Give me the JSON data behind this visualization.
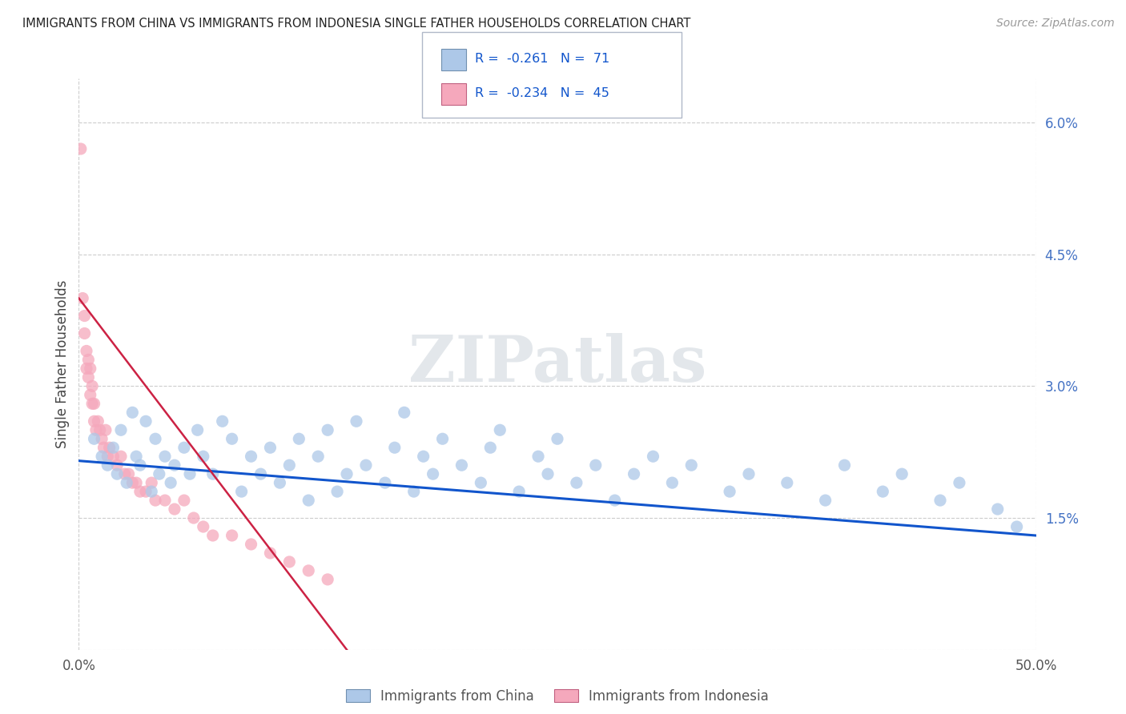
{
  "title": "IMMIGRANTS FROM CHINA VS IMMIGRANTS FROM INDONESIA SINGLE FATHER HOUSEHOLDS CORRELATION CHART",
  "source": "Source: ZipAtlas.com",
  "ylabel": "Single Father Households",
  "xlim": [
    0.0,
    0.5
  ],
  "ylim": [
    0.0,
    0.065
  ],
  "xtick_vals": [
    0.0,
    0.5
  ],
  "xtick_labels": [
    "0.0%",
    "50.0%"
  ],
  "ytick_vals": [
    0.0,
    0.015,
    0.03,
    0.045,
    0.06
  ],
  "ytick_labels": [
    "",
    "1.5%",
    "3.0%",
    "4.5%",
    "6.0%"
  ],
  "legend1_label": "Immigrants from China",
  "legend2_label": "Immigrants from Indonesia",
  "r_china": -0.261,
  "n_china": 71,
  "r_indonesia": -0.234,
  "n_indonesia": 45,
  "color_china": "#adc8e8",
  "color_indonesia": "#f5a8bc",
  "line_china": "#1155cc",
  "line_indonesia": "#cc2244",
  "background_color": "#ffffff",
  "grid_color": "#cccccc",
  "watermark": "ZIPatlas",
  "china_x": [
    0.008,
    0.012,
    0.015,
    0.018,
    0.02,
    0.022,
    0.025,
    0.028,
    0.03,
    0.032,
    0.035,
    0.038,
    0.04,
    0.042,
    0.045,
    0.048,
    0.05,
    0.055,
    0.058,
    0.062,
    0.065,
    0.07,
    0.075,
    0.08,
    0.085,
    0.09,
    0.095,
    0.1,
    0.105,
    0.11,
    0.115,
    0.12,
    0.125,
    0.13,
    0.135,
    0.14,
    0.145,
    0.15,
    0.16,
    0.165,
    0.17,
    0.175,
    0.18,
    0.185,
    0.19,
    0.2,
    0.21,
    0.215,
    0.22,
    0.23,
    0.24,
    0.245,
    0.25,
    0.26,
    0.27,
    0.28,
    0.29,
    0.3,
    0.31,
    0.32,
    0.34,
    0.35,
    0.37,
    0.39,
    0.4,
    0.42,
    0.43,
    0.45,
    0.46,
    0.48,
    0.49
  ],
  "china_y": [
    0.024,
    0.022,
    0.021,
    0.023,
    0.02,
    0.025,
    0.019,
    0.027,
    0.022,
    0.021,
    0.026,
    0.018,
    0.024,
    0.02,
    0.022,
    0.019,
    0.021,
    0.023,
    0.02,
    0.025,
    0.022,
    0.02,
    0.026,
    0.024,
    0.018,
    0.022,
    0.02,
    0.023,
    0.019,
    0.021,
    0.024,
    0.017,
    0.022,
    0.025,
    0.018,
    0.02,
    0.026,
    0.021,
    0.019,
    0.023,
    0.027,
    0.018,
    0.022,
    0.02,
    0.024,
    0.021,
    0.019,
    0.023,
    0.025,
    0.018,
    0.022,
    0.02,
    0.024,
    0.019,
    0.021,
    0.017,
    0.02,
    0.022,
    0.019,
    0.021,
    0.018,
    0.02,
    0.019,
    0.017,
    0.021,
    0.018,
    0.02,
    0.017,
    0.019,
    0.016,
    0.014
  ],
  "indonesia_x": [
    0.001,
    0.002,
    0.003,
    0.003,
    0.004,
    0.004,
    0.005,
    0.005,
    0.006,
    0.006,
    0.007,
    0.007,
    0.008,
    0.008,
    0.009,
    0.01,
    0.011,
    0.012,
    0.013,
    0.014,
    0.015,
    0.016,
    0.018,
    0.02,
    0.022,
    0.024,
    0.026,
    0.028,
    0.03,
    0.032,
    0.035,
    0.038,
    0.04,
    0.045,
    0.05,
    0.055,
    0.06,
    0.065,
    0.07,
    0.08,
    0.09,
    0.1,
    0.11,
    0.12,
    0.13
  ],
  "indonesia_y": [
    0.057,
    0.04,
    0.038,
    0.036,
    0.034,
    0.032,
    0.031,
    0.033,
    0.029,
    0.032,
    0.028,
    0.03,
    0.026,
    0.028,
    0.025,
    0.026,
    0.025,
    0.024,
    0.023,
    0.025,
    0.022,
    0.023,
    0.022,
    0.021,
    0.022,
    0.02,
    0.02,
    0.019,
    0.019,
    0.018,
    0.018,
    0.019,
    0.017,
    0.017,
    0.016,
    0.017,
    0.015,
    0.014,
    0.013,
    0.013,
    0.012,
    0.011,
    0.01,
    0.009,
    0.008
  ],
  "line_china_x0": 0.0,
  "line_china_y0": 0.0215,
  "line_china_x1": 0.5,
  "line_china_y1": 0.013,
  "line_indo_x0": 0.0,
  "line_indo_y0": 0.04,
  "line_indo_x1": 0.14,
  "line_indo_y1": 0.0
}
